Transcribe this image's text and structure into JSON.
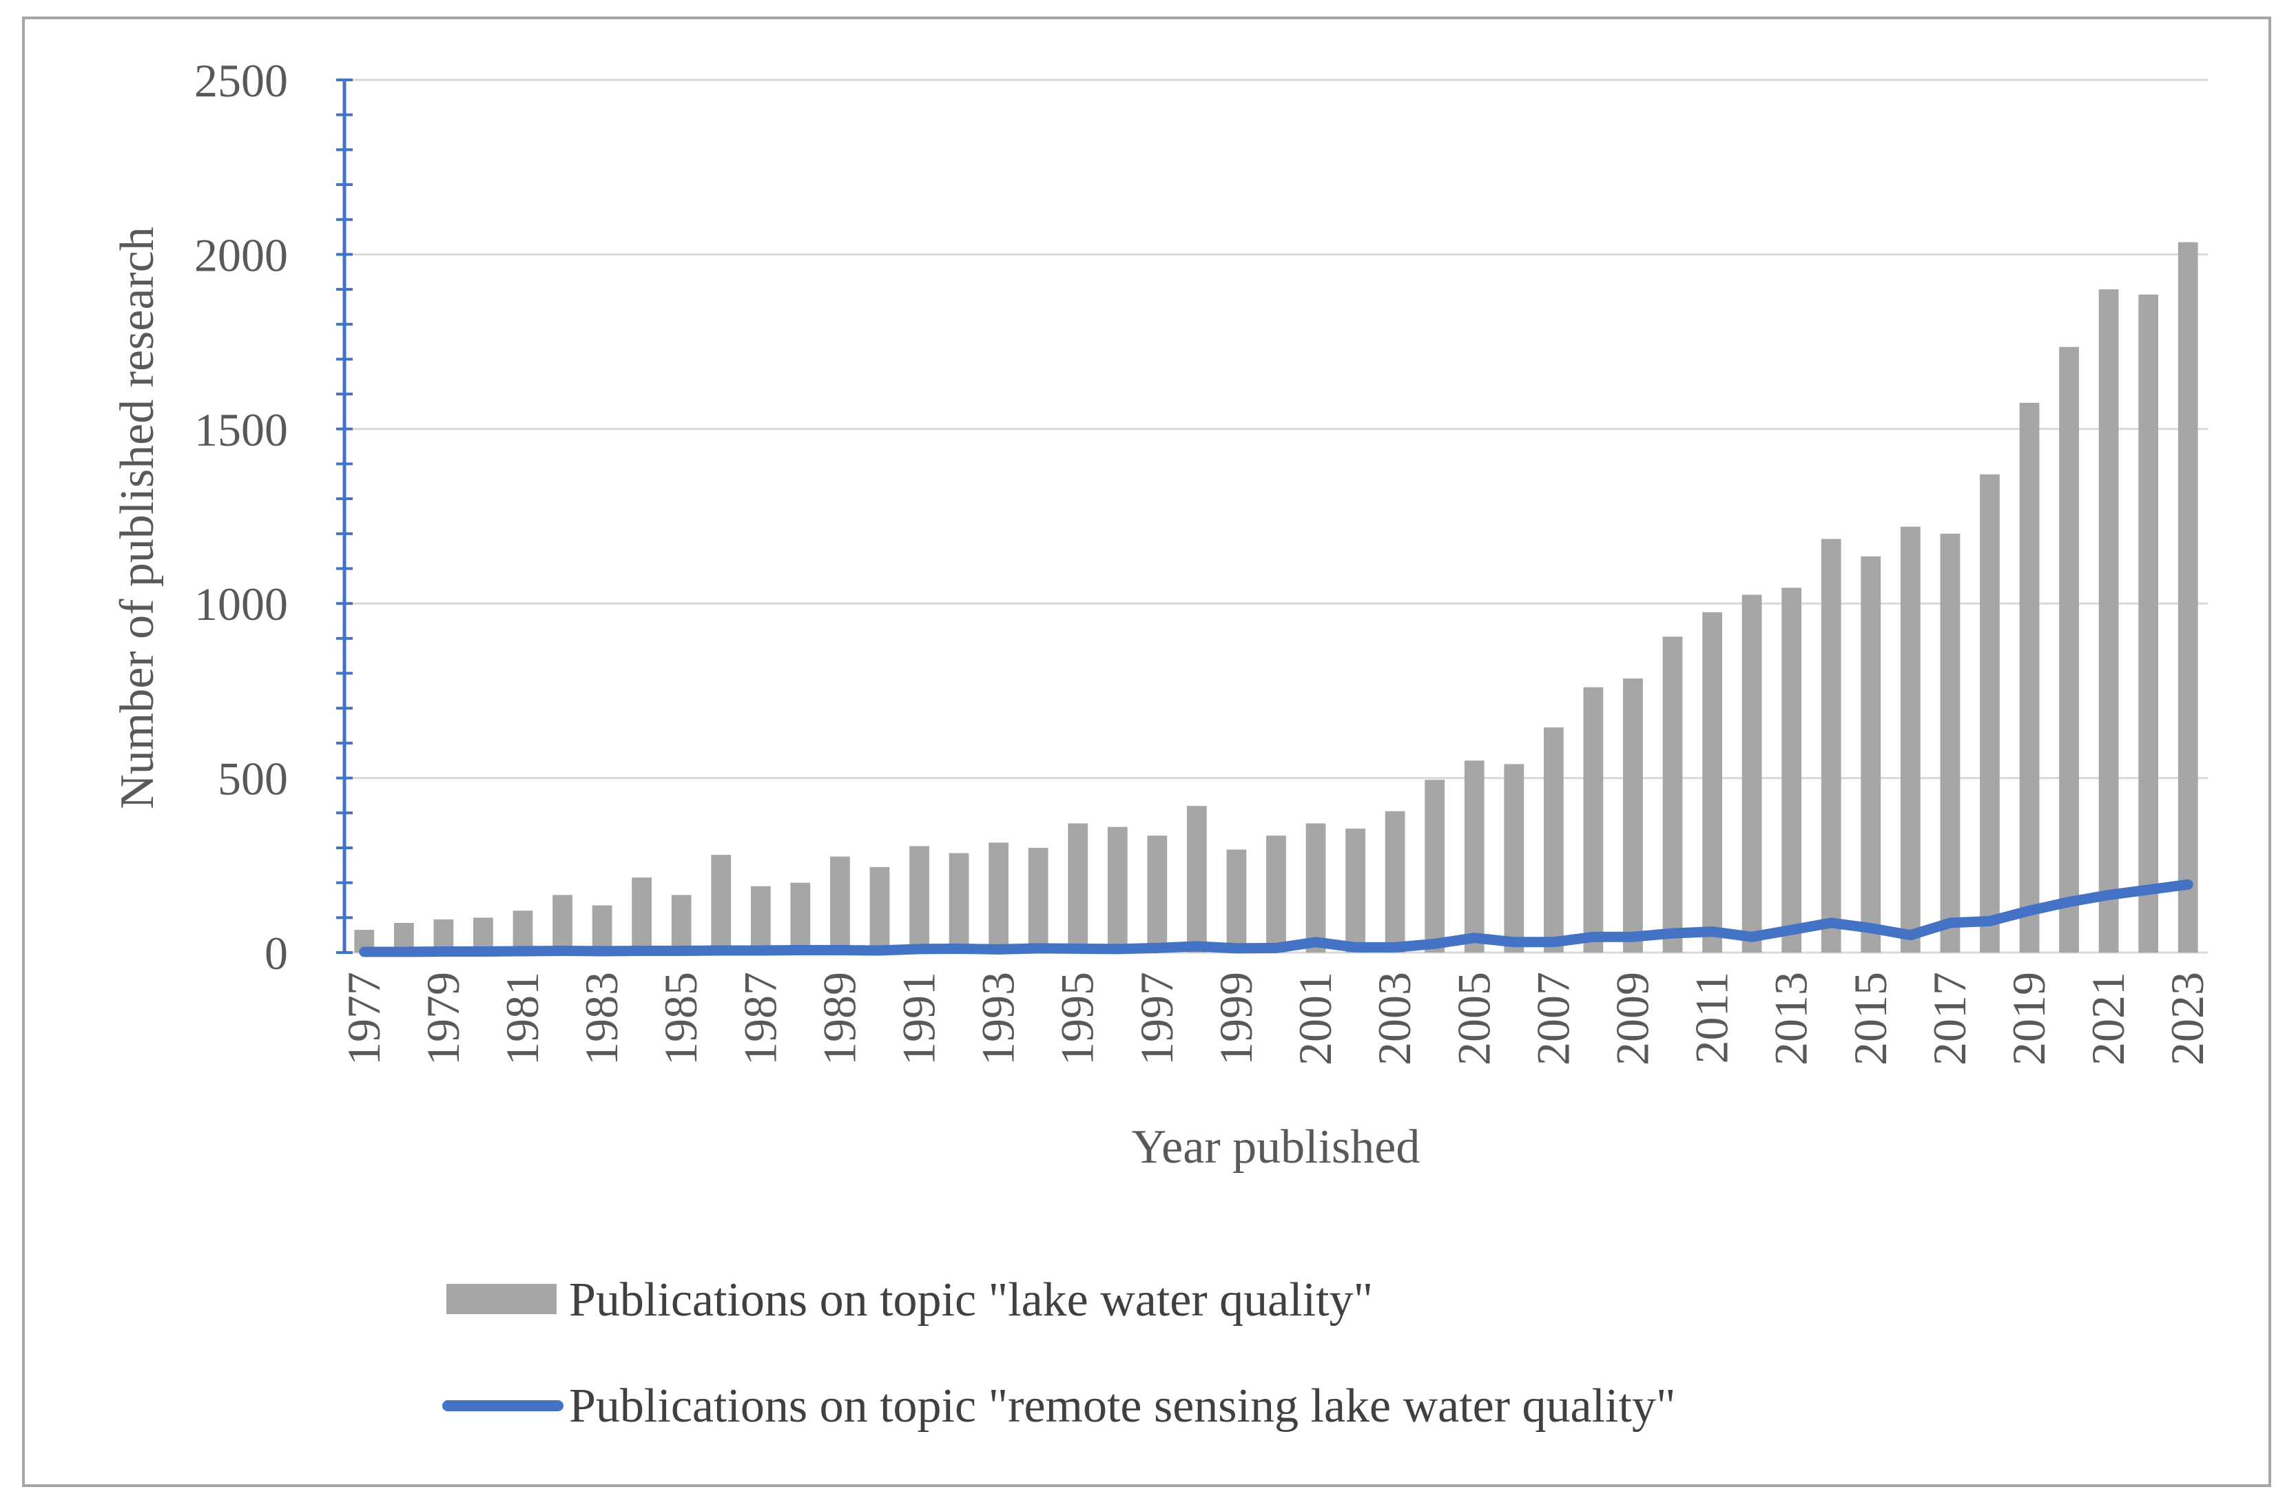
{
  "chart_data": {
    "type": "bar",
    "xlabel": "Year published",
    "ylabel": "Number of published  research",
    "ylim": [
      0,
      2500
    ],
    "yticks": [
      0,
      500,
      1000,
      1500,
      2000,
      2500
    ],
    "x_tick_labels": [
      "1977",
      "1979",
      "1981",
      "1983",
      "1985",
      "1987",
      "1989",
      "1991",
      "1993",
      "1995",
      "1997",
      "1999",
      "2001",
      "2003",
      "2005",
      "2007",
      "2009",
      "2011",
      "2013",
      "2015",
      "2017",
      "2019",
      "2021",
      "2023"
    ],
    "categories": [
      "1977",
      "1978",
      "1979",
      "1980",
      "1981",
      "1982",
      "1983",
      "1984",
      "1985",
      "1986",
      "1987",
      "1988",
      "1989",
      "1990",
      "1991",
      "1992",
      "1993",
      "1994",
      "1995",
      "1996",
      "1997",
      "1998",
      "1999",
      "2000",
      "2001",
      "2002",
      "2003",
      "2004",
      "2005",
      "2006",
      "2007",
      "2008",
      "2009",
      "2010",
      "2011",
      "2012",
      "2013",
      "2014",
      "2015",
      "2016",
      "2017",
      "2018",
      "2019",
      "2020",
      "2021",
      "2022",
      "2023"
    ],
    "grid": true,
    "legend_position": "bottom",
    "series": [
      {
        "name": "Publications on topic \"lake water quality\"",
        "type": "bar",
        "color": "#a6a6a6",
        "values": [
          65,
          85,
          95,
          100,
          120,
          165,
          135,
          215,
          165,
          280,
          190,
          200,
          275,
          245,
          305,
          285,
          315,
          300,
          370,
          360,
          335,
          420,
          295,
          335,
          370,
          355,
          405,
          495,
          550,
          540,
          645,
          760,
          785,
          905,
          975,
          1025,
          1045,
          1185,
          1135,
          1220,
          1200,
          1370,
          1575,
          1735,
          1900,
          1885,
          2035
        ]
      },
      {
        "name": "Publications on topic \"remote sensing lake water quality\"",
        "type": "line",
        "color": "#4472c4",
        "values": [
          2,
          2,
          3,
          3,
          4,
          5,
          4,
          5,
          5,
          6,
          6,
          7,
          7,
          6,
          10,
          11,
          9,
          12,
          11,
          10,
          13,
          18,
          12,
          13,
          30,
          15,
          15,
          25,
          42,
          30,
          30,
          45,
          45,
          55,
          60,
          45,
          65,
          85,
          70,
          50,
          85,
          90,
          120,
          145,
          165,
          180,
          195
        ]
      }
    ]
  }
}
